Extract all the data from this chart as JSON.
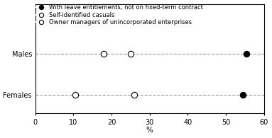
{
  "categories": [
    "Males",
    "Females"
  ],
  "series": [
    {
      "label": "With leave entitlements, not on fixed-term contract",
      "marker": "filled_circle",
      "values": [
        55.5,
        54.5
      ]
    },
    {
      "label": "Self-identified casuals",
      "marker": "open_circle",
      "values": [
        18.0,
        10.5
      ]
    },
    {
      "label": "Owner managers of unincorporated enterprises",
      "marker": "open_circle",
      "values": [
        25.0,
        26.0
      ]
    }
  ],
  "xlim": [
    0,
    60
  ],
  "xticks": [
    0,
    10,
    20,
    30,
    40,
    50,
    60
  ],
  "xlabel": "%",
  "ytick_labels": [
    "Males",
    "Females"
  ],
  "ytick_positions": [
    1,
    0
  ],
  "background_color": "#ffffff",
  "dashed_color": "#999999",
  "marker_color_filled": "#000000",
  "marker_color_open": "#000000",
  "marker_size_filled": 6,
  "marker_size_open": 6,
  "legend_fontsize": 6.0,
  "tick_fontsize": 7,
  "xlabel_fontsize": 7.5
}
